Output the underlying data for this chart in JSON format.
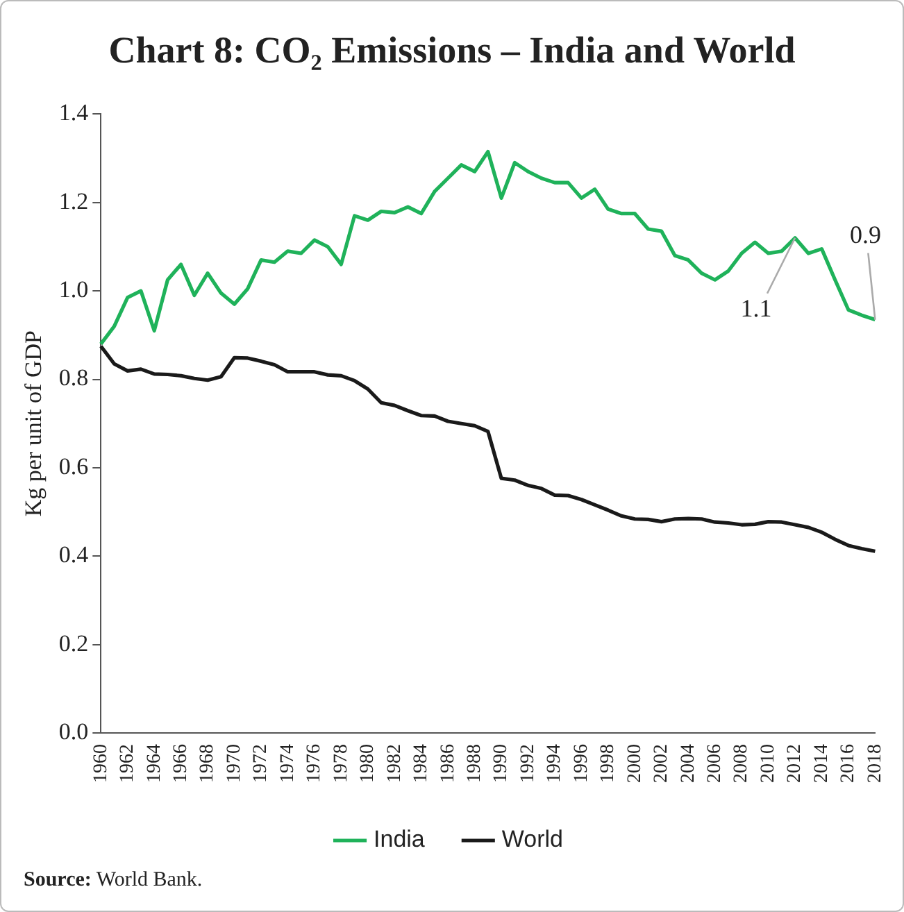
{
  "chart_data": {
    "type": "line",
    "title": "Chart 8: CO₂ Emissions – India and World",
    "ylabel": "Kg per unit of GDP",
    "categories": [
      "1960",
      null,
      "1962",
      null,
      "1964",
      null,
      "1966",
      null,
      "1968",
      null,
      "1970",
      null,
      "1972",
      null,
      "1974",
      null,
      "1976",
      null,
      "1978",
      null,
      "1980",
      null,
      "1982",
      null,
      "1984",
      null,
      "1986",
      null,
      "1988",
      null,
      "1990",
      null,
      "1992",
      null,
      "1994",
      null,
      "1996",
      null,
      "1998",
      null,
      "2000",
      null,
      "2002",
      null,
      "2004",
      null,
      "2006",
      null,
      "2008",
      null,
      "2010",
      null,
      "2012",
      null,
      "2014",
      null,
      "2016",
      null,
      "2018"
    ],
    "series": [
      {
        "name": "India",
        "color": "#1fb25a",
        "values": [
          0.88,
          0.92,
          0.985,
          1.0,
          0.91,
          1.025,
          1.06,
          0.99,
          1.04,
          0.995,
          0.97,
          1.005,
          1.07,
          1.065,
          1.09,
          1.085,
          1.115,
          1.1,
          1.06,
          1.17,
          1.16,
          1.18,
          1.177,
          1.19,
          1.175,
          1.225,
          1.255,
          1.285,
          1.27,
          1.315,
          1.21,
          1.29,
          1.27,
          1.255,
          1.245,
          1.245,
          1.21,
          1.23,
          1.185,
          1.175,
          1.175,
          1.14,
          1.135,
          1.08,
          1.07,
          1.04,
          1.025,
          1.045,
          1.085,
          1.11,
          1.085,
          1.09,
          1.12,
          1.085,
          1.095,
          1.025,
          0.957,
          0.945,
          0.935
        ]
      },
      {
        "name": "World",
        "color": "#1a1a1a",
        "values": [
          0.875,
          0.835,
          0.819,
          0.823,
          0.812,
          0.811,
          0.808,
          0.802,
          0.798,
          0.806,
          0.849,
          0.848,
          0.841,
          0.833,
          0.817,
          0.817,
          0.817,
          0.81,
          0.808,
          0.797,
          0.778,
          0.747,
          0.741,
          0.729,
          0.718,
          0.717,
          0.705,
          0.7,
          0.695,
          0.682,
          0.576,
          0.572,
          0.56,
          0.553,
          0.538,
          0.537,
          0.528,
          0.516,
          0.504,
          0.491,
          0.484,
          0.483,
          0.478,
          0.484,
          0.485,
          0.484,
          0.477,
          0.475,
          0.471,
          0.472,
          0.478,
          0.477,
          0.471,
          0.465,
          0.454,
          0.438,
          0.424,
          0.417,
          0.411
        ]
      }
    ],
    "ylim": [
      0,
      1.4
    ],
    "yticks": [
      {
        "value": 0,
        "label": "0.0"
      },
      {
        "value": 0.2,
        "label": "0.2"
      },
      {
        "value": 0.4,
        "label": "0.4"
      },
      {
        "value": 0.6,
        "label": "0.6"
      },
      {
        "value": 0.8,
        "label": "0.8"
      },
      {
        "value": 1.0,
        "label": "1.0"
      },
      {
        "value": 1.2,
        "label": "1.2"
      },
      {
        "value": 1.4,
        "label": "1.4"
      }
    ],
    "grid": false,
    "legend": "bottom",
    "marker": "none",
    "line_style": "solid",
    "annotations": [
      {
        "text": "1.1",
        "x": "2012",
        "y": 1.12
      },
      {
        "text": "0.9",
        "x": "2018",
        "y": 0.935
      },
      "Source: World Bank."
    ]
  }
}
